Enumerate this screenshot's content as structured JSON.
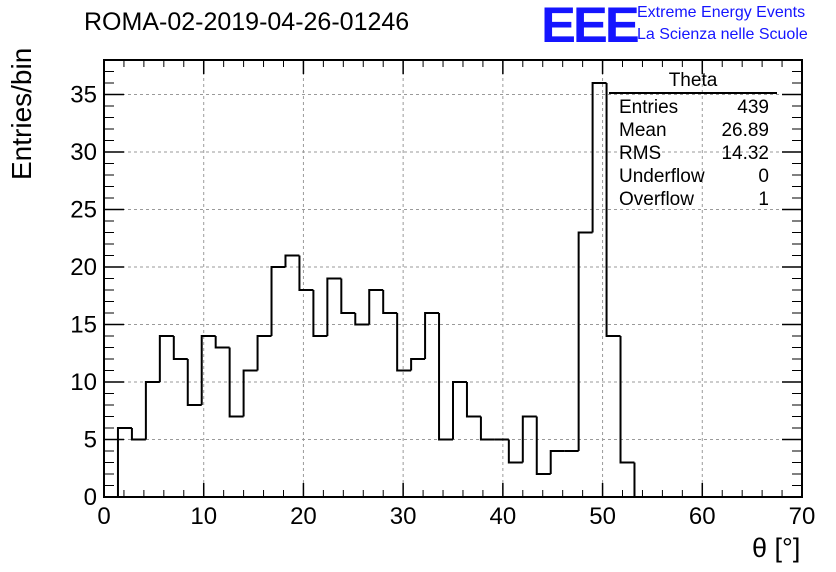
{
  "title": "ROMA-02-2019-04-26-01246",
  "logo": {
    "mark": "EEE",
    "line1": "Extreme Energy Events",
    "line2": "La Scienza nelle Scuole",
    "color": "#1515ff"
  },
  "stats_box": {
    "title": "Theta",
    "rows": [
      {
        "label": "Entries",
        "value": "439"
      },
      {
        "label": "Mean",
        "value": "26.89"
      },
      {
        "label": "RMS",
        "value": "14.32"
      },
      {
        "label": "Underflow",
        "value": "0"
      },
      {
        "label": "Overflow",
        "value": "1"
      }
    ]
  },
  "chart_data": {
    "type": "bar",
    "histogram": true,
    "xlabel": "θ [°]",
    "ylabel": "Entries/bin",
    "xlim": [
      0,
      70
    ],
    "ylim": [
      0,
      38
    ],
    "bin_width": 1.4,
    "x_ticks": [
      "0",
      "10",
      "20",
      "30",
      "40",
      "50",
      "60",
      "70"
    ],
    "y_ticks": [
      "0",
      "5",
      "10",
      "15",
      "20",
      "25",
      "30",
      "35"
    ],
    "grid": true,
    "bin_edges_start": 1.4,
    "values": [
      6,
      5,
      10,
      14,
      12,
      8,
      14,
      13,
      7,
      11,
      14,
      20,
      21,
      18,
      14,
      19,
      16,
      15,
      18,
      16,
      11,
      12,
      16,
      5,
      10,
      7,
      5,
      5,
      3,
      7,
      2,
      4,
      4,
      23,
      36,
      14,
      3
    ],
    "line_color": "#000000"
  }
}
